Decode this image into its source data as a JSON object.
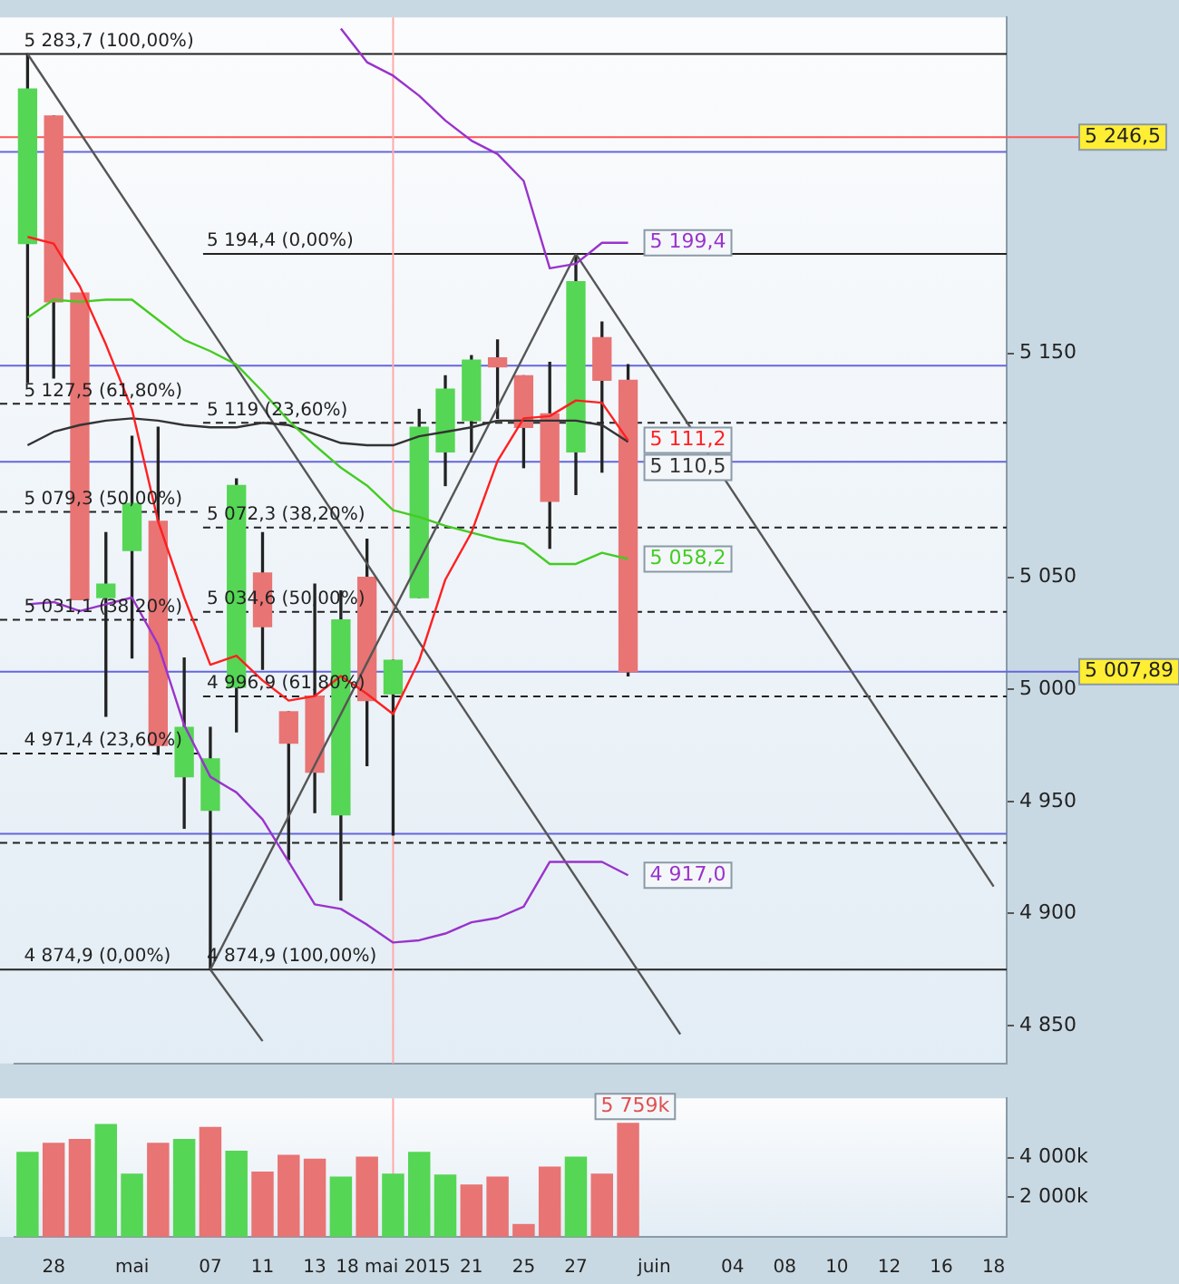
{
  "chart_data": [
    {
      "type": "candlestick",
      "categories": [
        null,
        "28",
        null,
        null,
        "mai",
        null,
        null,
        "07",
        null,
        "11",
        null,
        "13",
        null,
        null,
        "18 mai 2015",
        null,
        null,
        "21",
        null,
        "25",
        null,
        "27",
        null,
        null,
        "juin",
        null,
        null,
        "04",
        null,
        "08",
        null,
        "10",
        null,
        "12",
        null,
        "16",
        null,
        "18"
      ],
      "ohlc": [
        [
          5199,
          5283.7,
          5137,
          5268
        ],
        [
          5256,
          5256,
          5139,
          5173
        ],
        [
          5177,
          5177,
          5040,
          5040
        ],
        [
          5041,
          5070,
          4988,
          5047
        ],
        [
          5062,
          5113,
          5014,
          5083
        ],
        [
          5075,
          5117,
          4971,
          4975
        ],
        [
          4961,
          5014,
          4938,
          4983
        ],
        [
          4946,
          4983,
          4874.9,
          4969
        ],
        [
          5001,
          5094,
          4981,
          5091
        ],
        [
          5052,
          5070,
          5009,
          5028
        ],
        [
          4990,
          4990,
          4924,
          4976
        ],
        [
          4997,
          5047,
          4945,
          4963
        ],
        [
          4944,
          5044,
          4906,
          5031
        ],
        [
          5050,
          5067,
          4966,
          4995
        ],
        [
          4998,
          5013,
          4935,
          5013
        ],
        [
          5041,
          5125,
          5041,
          5117
        ],
        [
          5106,
          5140,
          5091,
          5134
        ],
        [
          5120,
          5149,
          5106,
          5147
        ],
        [
          5148,
          5156,
          5121,
          5144
        ],
        [
          5140,
          5140,
          5099,
          5117
        ],
        [
          5123,
          5146,
          5063,
          5084
        ],
        [
          5106,
          5194.4,
          5087,
          5182
        ],
        [
          5157,
          5164,
          5097,
          5138
        ],
        [
          5138,
          5145,
          5006,
          5007.89
        ],
        null,
        null,
        null,
        null,
        null,
        null,
        null,
        null,
        null,
        null,
        null,
        null,
        null,
        null
      ],
      "colors": [
        "#55d655",
        "#e87474",
        "#e87474",
        "#55d655",
        "#55d655",
        "#e87474",
        "#55d655",
        "#55d655",
        "#55d655",
        "#e87474",
        "#e87474",
        "#e87474",
        "#55d655",
        "#e87474",
        "#55d655",
        "#55d655",
        "#55d655",
        "#55d655",
        "#e87474",
        "#e87474",
        "#e87474",
        "#55d655",
        "#e87474",
        "#e87474",
        "#e87474",
        "#e87474",
        "#e87474",
        "#e87474",
        "#e87474",
        "#e87474",
        "#e87474",
        "#e87474",
        "#e87474",
        "#e87474",
        "#e87474",
        "#e87474",
        "#e87474",
        "#e87474"
      ],
      "series": [
        {
          "type": "line",
          "color": "#ff2020",
          "values": [
            5202,
            5199,
            5180,
            5154,
            5125,
            5075,
            5041,
            5011,
            5015,
            5004,
            4995,
            4997,
            5006,
            4998,
            4989,
            5013,
            5049,
            5070,
            5102,
            5121,
            5122,
            5129,
            5128,
            5111.2,
            null,
            null,
            null,
            null,
            null,
            null,
            null,
            null,
            null,
            null,
            null,
            null,
            null,
            null
          ],
          "value_labels": [
            null,
            null,
            null,
            null,
            null,
            null,
            null,
            null,
            null,
            null,
            null,
            null,
            null,
            null,
            null,
            null,
            null,
            null,
            null,
            null,
            null,
            null,
            null,
            "5 111,2",
            null,
            null,
            null,
            null,
            null,
            null,
            null,
            null,
            null,
            null,
            null,
            null,
            null,
            null
          ]
        },
        {
          "type": "line",
          "color": "#44cc22",
          "values": [
            5166,
            5174,
            5173,
            5174,
            5174,
            5165,
            5156,
            5151,
            5145,
            5133,
            5120,
            5109,
            5099,
            5091,
            5080,
            5077,
            5073,
            5070,
            5067,
            5065,
            5056,
            5056,
            5061,
            5058.2,
            null,
            null,
            null,
            null,
            null,
            null,
            null,
            null,
            null,
            null,
            null,
            null,
            null,
            null
          ],
          "value_labels": [
            null,
            null,
            null,
            null,
            null,
            null,
            null,
            null,
            null,
            null,
            null,
            null,
            null,
            null,
            null,
            null,
            null,
            null,
            null,
            null,
            null,
            null,
            null,
            "5 058,2",
            null,
            null,
            null,
            null,
            null,
            null,
            null,
            null,
            null,
            null,
            null,
            null,
            null,
            null
          ]
        },
        {
          "type": "line",
          "color": "#333333",
          "values": [
            5109,
            5115,
            5118,
            5120,
            5121,
            5120,
            5118,
            5117,
            5117,
            5119,
            5118,
            5114,
            5110,
            5109,
            5109,
            5113,
            5115,
            5117,
            5120,
            5120,
            5120,
            5120,
            5118,
            5110.5,
            null,
            null,
            null,
            null,
            null,
            null,
            null,
            null,
            null,
            null,
            null,
            null,
            null,
            null
          ],
          "value_labels": [
            null,
            null,
            null,
            null,
            null,
            null,
            null,
            null,
            null,
            null,
            null,
            null,
            null,
            null,
            null,
            null,
            null,
            null,
            null,
            null,
            null,
            null,
            null,
            "5 110,5",
            null,
            null,
            null,
            null,
            null,
            null,
            null,
            null,
            null,
            null,
            null,
            null,
            null,
            null
          ]
        },
        {
          "type": "line",
          "color": "#9933cc",
          "values": [
            null,
            null,
            null,
            null,
            null,
            null,
            null,
            null,
            null,
            null,
            null,
            null,
            5295,
            5280,
            5274,
            5265,
            5254,
            5245,
            5239,
            5227,
            5188,
            5190,
            5199.4,
            5199.4,
            null,
            null,
            null,
            null,
            null,
            null,
            null,
            null,
            null,
            null,
            null,
            null,
            null,
            null
          ],
          "value_labels": [
            null,
            null,
            null,
            null,
            null,
            null,
            null,
            null,
            null,
            null,
            null,
            null,
            null,
            null,
            null,
            null,
            null,
            null,
            null,
            null,
            null,
            null,
            null,
            "5 199,4",
            null,
            null,
            null,
            null,
            null,
            null,
            null,
            null,
            null,
            null,
            null,
            null,
            null,
            null
          ]
        },
        {
          "type": "line",
          "color": "#9933cc",
          "values": [
            5038,
            5039,
            5035,
            5038,
            5041,
            5020,
            4984,
            4961,
            4954,
            4942,
            4923,
            4904,
            4902,
            4895,
            4887,
            4888,
            4891,
            4896,
            4898,
            4903,
            4923,
            4923,
            4923,
            4917.0,
            null,
            null,
            null,
            null,
            null,
            null,
            null,
            null,
            null,
            null,
            null,
            null,
            null,
            null
          ],
          "value_labels": [
            null,
            null,
            null,
            null,
            null,
            null,
            null,
            null,
            null,
            null,
            null,
            null,
            null,
            null,
            null,
            null,
            null,
            null,
            null,
            null,
            null,
            null,
            null,
            "4 917,0",
            null,
            null,
            null,
            null,
            null,
            null,
            null,
            null,
            null,
            null,
            null,
            null,
            null,
            null
          ]
        },
        {
          "type": "line",
          "color": "#555555",
          "values": [
            5283.7,
            null,
            null,
            null,
            null,
            null,
            null,
            null,
            null,
            null,
            null,
            null,
            null,
            null,
            null,
            null,
            null,
            null,
            null,
            null,
            null,
            null,
            null,
            null,
            null,
            4846,
            null,
            null,
            null,
            null,
            null,
            null,
            null,
            null,
            null,
            null,
            null,
            null
          ]
        },
        {
          "type": "line",
          "color": "#555555",
          "values": [
            null,
            null,
            null,
            null,
            null,
            null,
            null,
            4874.9,
            null,
            4843,
            null,
            null,
            null,
            null,
            null,
            null,
            null,
            null,
            null,
            null,
            null,
            null,
            null,
            null,
            null,
            null,
            null,
            null,
            null,
            null,
            null,
            null,
            null,
            null,
            null,
            null,
            null,
            null
          ]
        },
        {
          "type": "line",
          "color": "#555555",
          "values": [
            null,
            null,
            null,
            null,
            null,
            null,
            null,
            4874.9,
            null,
            null,
            null,
            null,
            null,
            null,
            null,
            null,
            null,
            null,
            null,
            null,
            null,
            5194.4,
            null,
            null,
            null,
            null,
            null,
            null,
            null,
            null,
            null,
            null,
            null,
            null,
            null,
            null,
            null,
            null
          ]
        },
        {
          "type": "line",
          "color": "#555555",
          "values": [
            null,
            null,
            null,
            null,
            null,
            null,
            null,
            null,
            null,
            null,
            null,
            null,
            null,
            null,
            null,
            null,
            null,
            null,
            null,
            null,
            null,
            5194.4,
            null,
            null,
            null,
            null,
            null,
            null,
            null,
            null,
            null,
            null,
            null,
            null,
            null,
            null,
            null,
            4912
          ]
        }
      ],
      "marker": "none",
      "ylim": [
        4833,
        5300
      ],
      "yticks": [
        {
          "value": 4850,
          "label": "4 850"
        },
        {
          "value": 4900,
          "label": "4 900"
        },
        {
          "value": 4950,
          "label": "4 950"
        },
        {
          "value": 5000,
          "label": "5 000"
        },
        {
          "value": 5050,
          "label": "5 050"
        },
        {
          "value": 5150,
          "label": "5 150"
        }
      ],
      "ref_lines": [
        {
          "axis": "y",
          "value": 5283.7,
          "label": "5 283,7 (100,00%)",
          "color": "#222222",
          "line_style": "solid"
        },
        {
          "axis": "y",
          "value": 5127.5,
          "label": "5 127,5 (61,80%)",
          "color": "#222222",
          "line_style": "dashed"
        },
        {
          "axis": "y",
          "value": 5079.3,
          "label": "5 079,3 (50,00%)",
          "color": "#222222",
          "line_style": "dashed"
        },
        {
          "axis": "y",
          "value": 5031.1,
          "label": "5 031,1 (38,20%)",
          "color": "#222222",
          "line_style": "dashed"
        },
        {
          "axis": "y",
          "value": 4971.4,
          "label": "4 971,4 (23,60%)",
          "color": "#222222",
          "line_style": "dashed"
        },
        {
          "axis": "y",
          "value": 4874.9,
          "label": "4 874,9 (0,00%)",
          "color": "#222222",
          "line_style": "solid"
        },
        {
          "axis": "y",
          "value": 5194.4,
          "label": "5 194,4 (0,00%)",
          "color": "#222222",
          "line_style": "solid"
        },
        {
          "axis": "y",
          "value": 5119,
          "label": "5 119 (23,60%)",
          "color": "#222222",
          "line_style": "dashed"
        },
        {
          "axis": "y",
          "value": 5072.3,
          "label": "5 072,3 (38,20%)",
          "color": "#222222",
          "line_style": "dashed"
        },
        {
          "axis": "y",
          "value": 5034.6,
          "label": "5 034,6 (50,00%)",
          "color": "#222222",
          "line_style": "dashed"
        },
        {
          "axis": "y",
          "value": 4996.9,
          "label": "4 996,9 (61,80%)",
          "color": "#222222",
          "line_style": "dashed"
        },
        {
          "axis": "y",
          "value": 5246.5,
          "label": "5 246,5",
          "color": "#ff5555",
          "line_style": "solid"
        },
        {
          "axis": "y",
          "value": 5007.89,
          "label": "5 007,89",
          "color": "#6666dd",
          "line_style": "solid"
        },
        {
          "axis": "y",
          "value": 5240,
          "color": "#6666dd",
          "line_style": "solid"
        },
        {
          "axis": "y",
          "value": 5144.5,
          "color": "#6666dd",
          "line_style": "solid"
        },
        {
          "axis": "y",
          "value": 5101.6,
          "color": "#6666dd",
          "line_style": "solid"
        },
        {
          "axis": "y",
          "value": 4935.5,
          "color": "#6666dd",
          "line_style": "solid"
        },
        {
          "axis": "y",
          "value": 4931.5,
          "color": "#222222",
          "line_style": "dashed"
        },
        {
          "axis": "x",
          "value": "18 mai 2015",
          "color": "#ffaaaa",
          "line_style": "solid"
        }
      ],
      "annotations": [
        {
          "text": "4 874,9 (100,00%)",
          "x": "07",
          "y": 4874.9
        }
      ],
      "tick_labels": "y",
      "legend": false,
      "grid": false
    },
    {
      "type": "bar",
      "categories": [
        null,
        "28",
        null,
        null,
        "mai",
        null,
        null,
        "07",
        null,
        "11",
        null,
        "13",
        null,
        null,
        "18 mai 2015",
        null,
        null,
        "21",
        null,
        "25",
        null,
        "27",
        null,
        null,
        "juin",
        null,
        null,
        "04",
        null,
        "08",
        null,
        "10",
        null,
        "12",
        null,
        "16",
        null,
        "18"
      ],
      "values": [
        4300,
        4750,
        4950,
        5700,
        3200,
        4750,
        4950,
        5550,
        4350,
        3300,
        4150,
        3950,
        3050,
        4050,
        3200,
        4300,
        3150,
        2650,
        3050,
        650,
        3550,
        4050,
        3200,
        5759,
        null,
        null,
        null,
        null,
        null,
        null,
        null,
        null,
        null,
        null,
        null,
        null,
        null,
        null
      ],
      "value_labels": [
        null,
        null,
        null,
        null,
        null,
        null,
        null,
        null,
        null,
        null,
        null,
        null,
        null,
        null,
        null,
        null,
        null,
        null,
        null,
        null,
        null,
        null,
        null,
        "5 759k",
        null,
        null,
        null,
        null,
        null,
        null,
        null,
        null,
        null,
        null,
        null,
        null,
        null,
        null
      ],
      "colors": [
        "#55d655",
        "#e87474",
        "#e87474",
        "#55d655",
        "#55d655",
        "#e87474",
        "#55d655",
        "#e87474",
        "#55d655",
        "#e87474",
        "#e87474",
        "#e87474",
        "#55d655",
        "#e87474",
        "#55d655",
        "#55d655",
        "#55d655",
        "#e87474",
        "#e87474",
        "#e87474",
        "#e87474",
        "#55d655",
        "#e87474",
        "#e87474",
        "#e87474",
        "#e87474",
        "#e87474",
        "#e87474",
        "#e87474",
        "#e87474",
        "#e87474",
        "#e87474",
        "#e87474",
        "#e87474",
        "#e87474",
        "#e87474",
        "#e87474",
        "#e87474"
      ],
      "ylim": [
        0,
        7000
      ],
      "yticks": [
        {
          "value": 2000,
          "label": "2 000k"
        },
        {
          "value": 4000,
          "label": "4 000k"
        }
      ],
      "ref_lines": [
        {
          "axis": "x",
          "value": "18 mai 2015",
          "color": "#ffaaaa",
          "line_style": "solid"
        }
      ],
      "legend": false,
      "grid": false
    }
  ]
}
